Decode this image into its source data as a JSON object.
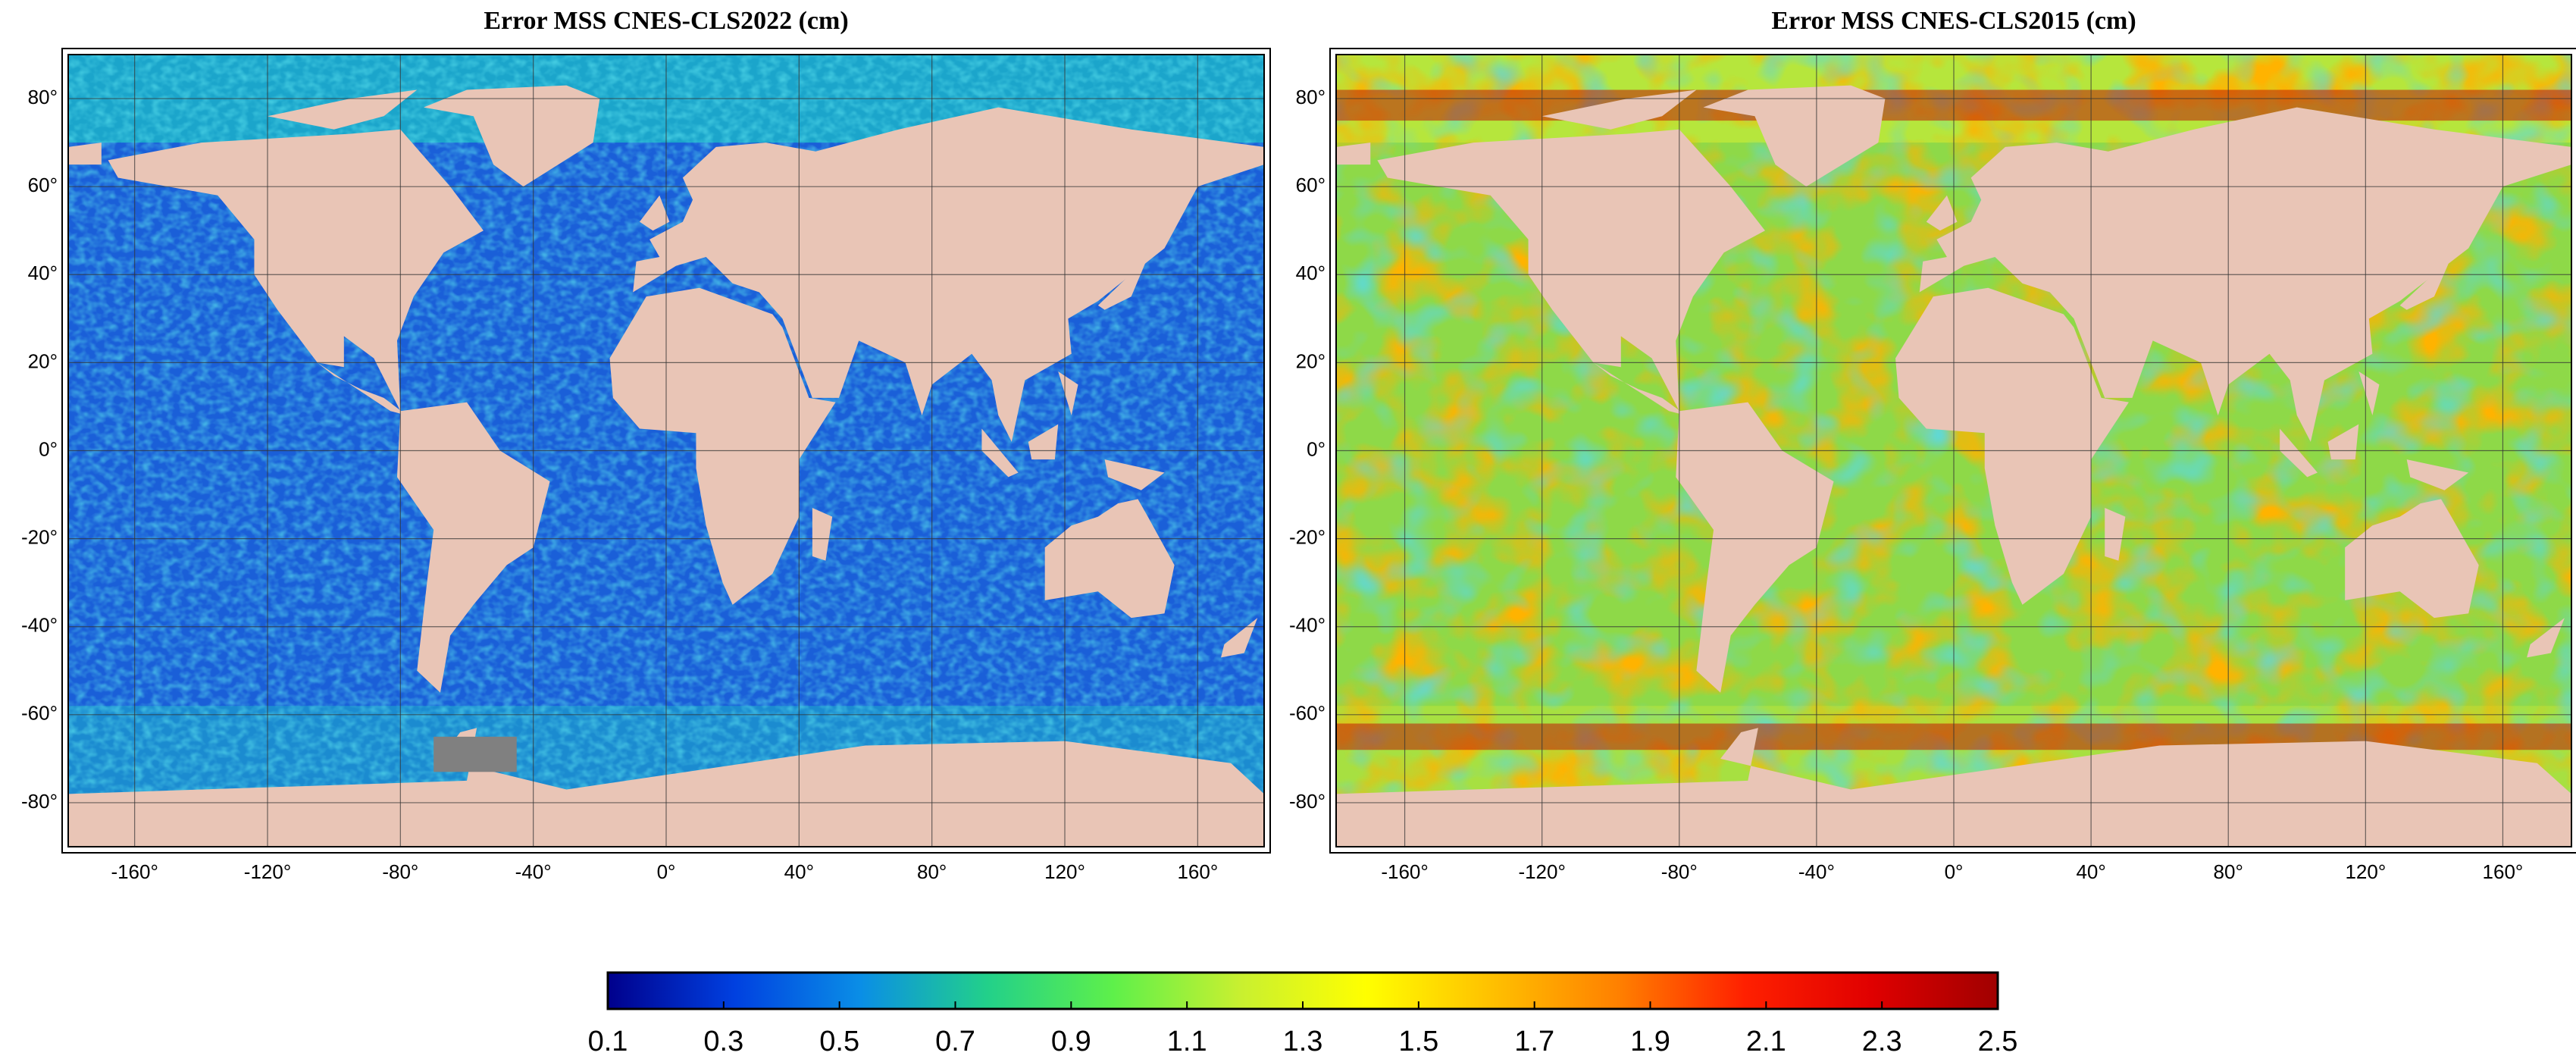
{
  "maps": [
    {
      "title": "Error MSS CNES-CLS2022 (cm)",
      "xlim": [
        -180,
        180
      ],
      "ylim": [
        -90,
        90
      ],
      "xticks": [
        {
          "value": -160,
          "label": "-160°"
        },
        {
          "value": -120,
          "label": "-120°"
        },
        {
          "value": -80,
          "label": "-80°"
        },
        {
          "value": -40,
          "label": "-40°"
        },
        {
          "value": 0,
          "label": "0°"
        },
        {
          "value": 40,
          "label": "40°"
        },
        {
          "value": 80,
          "label": "80°"
        },
        {
          "value": 120,
          "label": "120°"
        },
        {
          "value": 160,
          "label": "160°"
        }
      ],
      "yticks": [
        {
          "value": -80,
          "label": "-80°"
        },
        {
          "value": -60,
          "label": "-60°"
        },
        {
          "value": -40,
          "label": "-40°"
        },
        {
          "value": -20,
          "label": "-20°"
        },
        {
          "value": 0,
          "label": "0°"
        },
        {
          "value": 20,
          "label": "20°"
        },
        {
          "value": 40,
          "label": "40°"
        },
        {
          "value": 60,
          "label": "60°"
        },
        {
          "value": 80,
          "label": "80°"
        }
      ]
    },
    {
      "title": "Error MSS CNES-CLS2015 (cm)",
      "xlim": [
        -180,
        180
      ],
      "ylim": [
        -90,
        90
      ],
      "xticks": [
        {
          "value": -160,
          "label": "-160°"
        },
        {
          "value": -120,
          "label": "-120°"
        },
        {
          "value": -80,
          "label": "-80°"
        },
        {
          "value": -40,
          "label": "-40°"
        },
        {
          "value": 0,
          "label": "0°"
        },
        {
          "value": 40,
          "label": "40°"
        },
        {
          "value": 80,
          "label": "80°"
        },
        {
          "value": 120,
          "label": "120°"
        },
        {
          "value": 160,
          "label": "160°"
        }
      ],
      "yticks": [
        {
          "value": -80,
          "label": "-80°"
        },
        {
          "value": -60,
          "label": "-60°"
        },
        {
          "value": -40,
          "label": "-40°"
        },
        {
          "value": -20,
          "label": "-20°"
        },
        {
          "value": 0,
          "label": "0°"
        },
        {
          "value": 20,
          "label": "20°"
        },
        {
          "value": 40,
          "label": "40°"
        },
        {
          "value": 60,
          "label": "60°"
        },
        {
          "value": 80,
          "label": "80°"
        }
      ]
    }
  ],
  "colorbar": {
    "lim": [
      0.1,
      2.5
    ],
    "ticks": [
      0.1,
      0.3,
      0.5,
      0.7,
      0.9,
      1.1,
      1.3,
      1.5,
      1.7,
      1.9,
      2.1,
      2.3,
      2.5
    ],
    "colors": [
      "#00008c",
      "#0040e0",
      "#0a8ee6",
      "#22d08a",
      "#5ef04a",
      "#c8f030",
      "#ffff00",
      "#ffc000",
      "#ff8000",
      "#ff2000",
      "#e00000",
      "#a00000"
    ]
  }
}
